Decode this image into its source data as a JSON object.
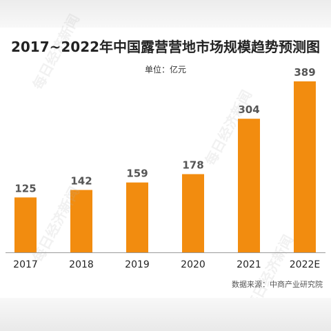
{
  "title": "2017~2022年中国露营营地市场规模趋势预测图",
  "unit": "单位：亿元",
  "source": "数据来源：中商产业研究院",
  "watermark": "每日经济新闻",
  "colors": {
    "bar": "#F28C0F",
    "value_label": "#555555",
    "axis": "#999999",
    "tick_label": "#222222"
  },
  "chart_data": {
    "type": "bar",
    "categories": [
      "2017",
      "2018",
      "2019",
      "2020",
      "2021",
      "2022E"
    ],
    "values": [
      125,
      142,
      159,
      178,
      304,
      389
    ],
    "title": "2017~2022年中国露营营地市场规模趋势预测图",
    "xlabel": "",
    "ylabel": "单位：亿元",
    "ylim": [
      0,
      389
    ],
    "grid": false,
    "data_labels": true
  }
}
